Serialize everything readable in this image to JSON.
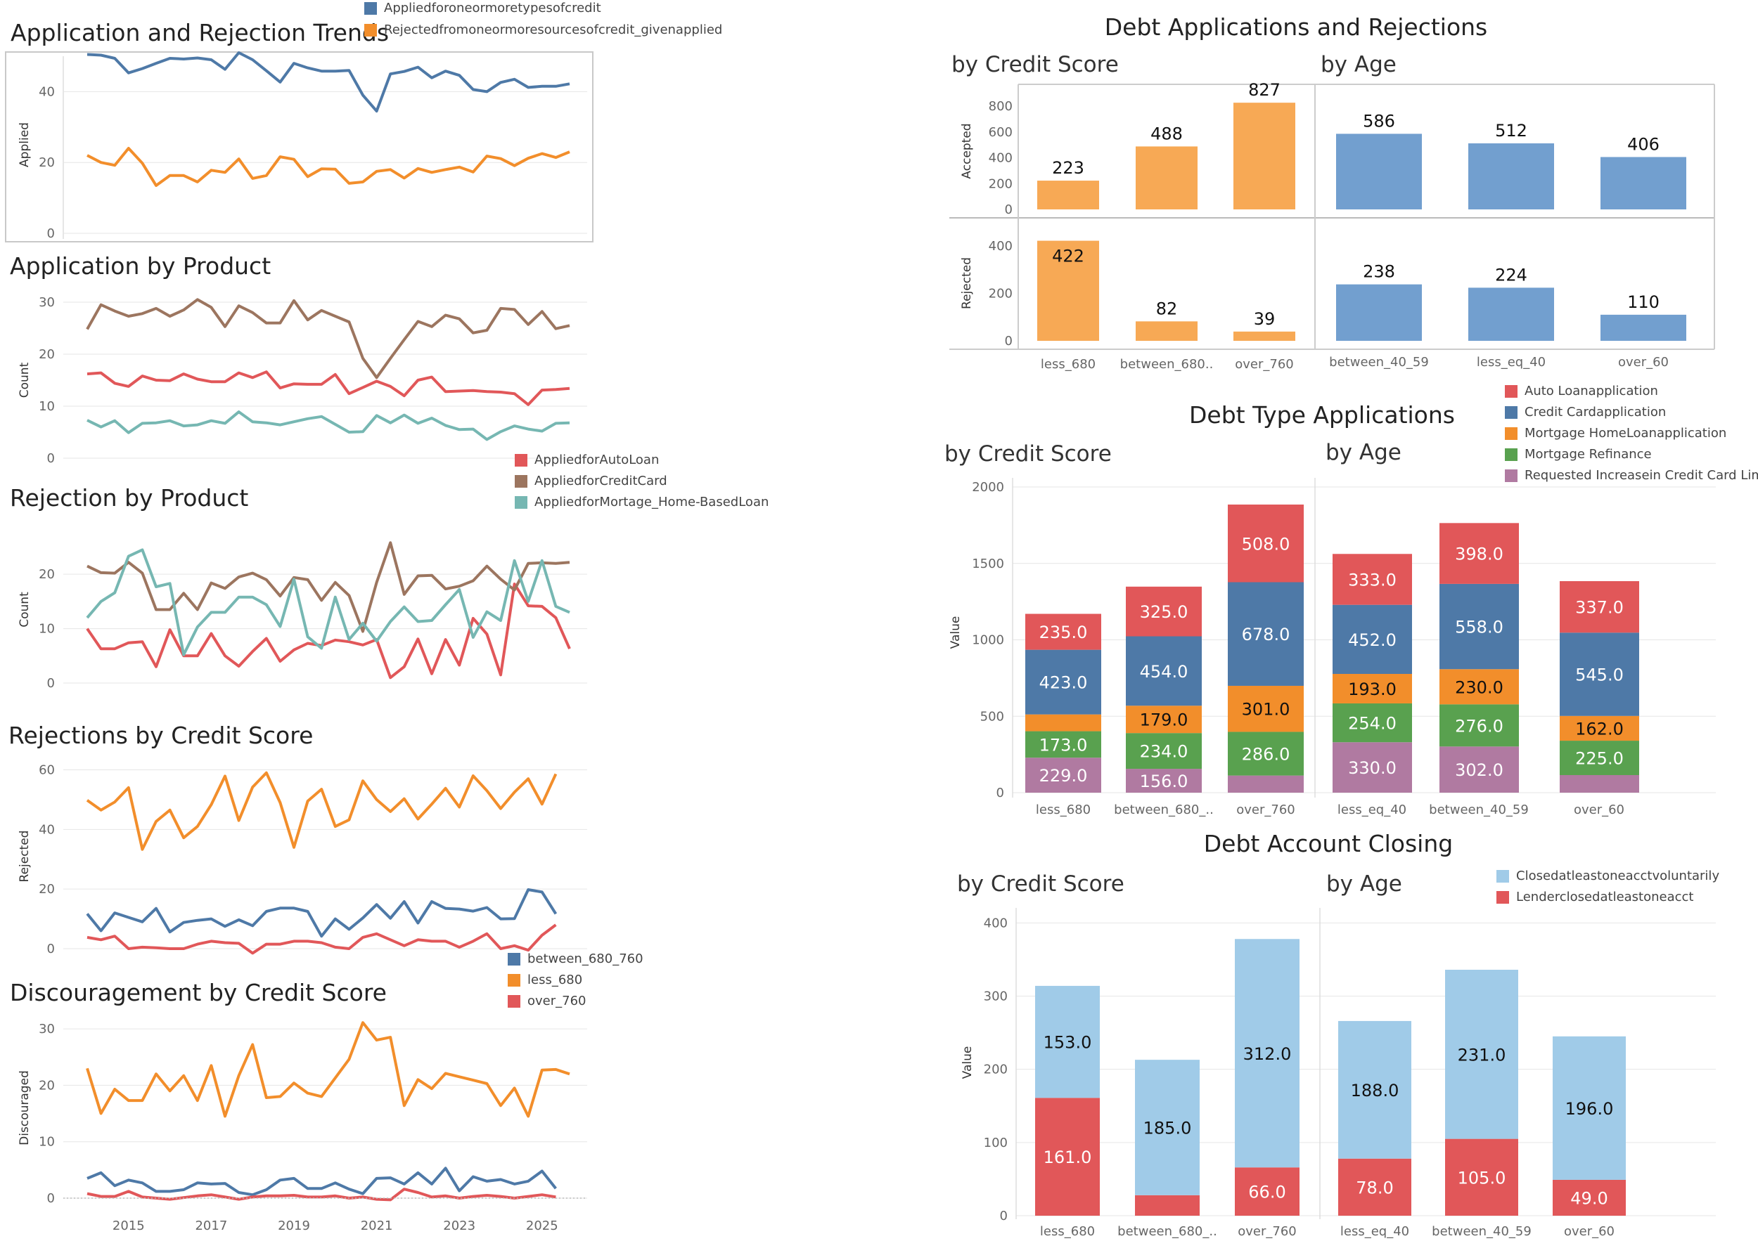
{
  "colors": {
    "blue": "#4e79a7",
    "orange": "#f28e2b",
    "red": "#e15759",
    "teal": "#76b7b2",
    "brown": "#9c755f",
    "green": "#59a14f",
    "purple": "#b07aa1",
    "light_orange": "#f7a955",
    "light_blue_bar": "#729fcf",
    "sky": "#a0cbe8"
  },
  "chart_data": [
    {
      "id": "app_rej_trends",
      "type": "line",
      "title": "Application and Rejection Trends",
      "ylabel": "Applied",
      "ylim": [
        0,
        50
      ],
      "yticks": [
        0,
        20,
        40
      ],
      "legend": [
        "Appliedforoneormoretypesofcredit",
        "Rejectedfromoneormoresourcesofcredit_givenapplied"
      ],
      "series": [
        {
          "name": "Appliedforoneormoretypesofcredit",
          "color": "#4e79a7",
          "values": [
            50.5,
            50.3,
            49.4,
            45.3,
            46.5,
            48.0,
            49.4,
            49.2,
            49.5,
            49.0,
            46.3,
            51.0,
            49.0,
            45.9,
            42.7,
            48.0,
            46.7,
            45.8,
            45.8,
            46.0,
            39.0,
            34.5,
            45.0,
            45.7,
            46.9,
            43.9,
            45.8,
            44.6,
            40.6,
            40.0,
            42.6,
            43.5,
            41.2,
            41.5,
            41.5,
            42.2
          ]
        },
        {
          "name": "Rejectedfromoneormoresourcesofcredit_givenapplied",
          "color": "#f28e2b",
          "values": [
            22.0,
            20.0,
            19.2,
            24.0,
            19.8,
            13.5,
            16.3,
            16.3,
            14.5,
            17.8,
            17.2,
            21.0,
            15.5,
            16.3,
            21.6,
            20.9,
            16.0,
            18.2,
            18.1,
            14.1,
            14.5,
            17.5,
            18.0,
            15.6,
            18.3,
            17.2,
            18.0,
            18.7,
            17.3,
            21.8,
            21.1,
            19.1,
            21.2,
            22.5,
            21.4,
            23.0
          ]
        }
      ]
    },
    {
      "id": "app_by_product",
      "type": "line",
      "title": "Application by Product",
      "ylabel": "Count",
      "ylim": [
        0,
        30
      ],
      "yticks": [
        0,
        10,
        20,
        30
      ],
      "legend": [
        "AppliedforAutoLoan",
        "AppliedforCreditCard",
        "AppliedforMortage_Home-BasedLoan"
      ],
      "series": [
        {
          "name": "AppliedforAutoLoan",
          "color": "#e15759",
          "values": [
            16.2,
            16.4,
            14.4,
            13.8,
            15.8,
            15.0,
            14.9,
            16.2,
            15.2,
            14.7,
            14.7,
            16.4,
            15.5,
            16.6,
            13.5,
            14.3,
            14.2,
            14.2,
            16.1,
            12.4,
            13.6,
            14.8,
            13.8,
            12.0,
            15.0,
            15.6,
            12.8,
            12.9,
            13.0,
            12.8,
            12.7,
            12.4,
            10.3,
            13.1,
            13.2,
            13.4
          ]
        },
        {
          "name": "AppliedforCreditCard",
          "color": "#9c755f",
          "values": [
            24.8,
            29.5,
            28.3,
            27.3,
            27.8,
            28.8,
            27.3,
            28.5,
            30.5,
            29.0,
            25.3,
            29.3,
            28.0,
            26.0,
            26.0,
            30.3,
            26.6,
            28.4,
            27.3,
            26.2,
            19.2,
            15.5,
            19.2,
            22.8,
            26.3,
            25.3,
            27.5,
            26.8,
            24.1,
            24.6,
            28.8,
            28.6,
            25.7,
            28.2,
            24.9,
            25.5
          ]
        },
        {
          "name": "AppliedforMortage_Home-BasedLoan",
          "color": "#76b7b2",
          "values": [
            7.3,
            6.0,
            7.2,
            4.9,
            6.7,
            6.8,
            7.2,
            6.2,
            6.4,
            7.2,
            6.7,
            8.9,
            7.0,
            6.8,
            6.4,
            7.0,
            7.6,
            8.0,
            6.5,
            5.0,
            5.1,
            8.2,
            6.8,
            8.3,
            6.7,
            7.7,
            6.3,
            5.5,
            5.6,
            3.6,
            5.1,
            6.2,
            5.6,
            5.2,
            6.7,
            6.8
          ]
        }
      ]
    },
    {
      "id": "rej_by_product",
      "type": "line",
      "title": "Rejection by Product",
      "ylabel": "Count",
      "ylim": [
        0,
        27
      ],
      "yticks": [
        0,
        10,
        20
      ],
      "series": [
        {
          "name": "AppliedforAutoLoan",
          "color": "#e15759",
          "values": [
            10.0,
            6.3,
            6.3,
            7.4,
            7.6,
            3.0,
            9.8,
            5.0,
            5.0,
            9.1,
            5.0,
            3.1,
            5.8,
            8.2,
            4.0,
            6.1,
            7.3,
            6.9,
            7.9,
            7.6,
            7.0,
            8.0,
            1.0,
            3.0,
            8.1,
            1.7,
            8.0,
            3.3,
            11.9,
            9.0,
            1.5,
            18.2,
            14.2,
            14.1,
            12.0,
            6.3
          ]
        },
        {
          "name": "AppliedforCreditCard",
          "color": "#9c755f",
          "values": [
            21.5,
            20.3,
            20.2,
            22.2,
            20.2,
            13.5,
            13.5,
            16.5,
            13.5,
            18.4,
            17.4,
            19.5,
            20.2,
            19.0,
            16.0,
            19.4,
            19.0,
            15.2,
            18.5,
            16.1,
            9.5,
            18.5,
            25.8,
            16.3,
            19.7,
            19.8,
            17.3,
            17.8,
            18.8,
            21.5,
            19.1,
            17.1,
            22.0,
            22.1,
            22.0,
            22.2
          ]
        },
        {
          "name": "AppliedforMortage_Home-BasedLoan",
          "color": "#76b7b2",
          "values": [
            12.0,
            15.0,
            16.6,
            23.3,
            24.5,
            17.7,
            18.3,
            5.2,
            10.3,
            13.0,
            13.0,
            15.8,
            15.8,
            14.4,
            10.4,
            19.1,
            8.5,
            6.4,
            15.8,
            8.0,
            11.0,
            7.7,
            11.3,
            14.0,
            11.3,
            11.5,
            14.4,
            17.2,
            8.4,
            13.1,
            11.5,
            22.5,
            15.0,
            22.5,
            14.1,
            13.0
          ]
        }
      ]
    },
    {
      "id": "rej_by_credit",
      "type": "line",
      "title": "Rejections by Credit Score",
      "ylabel": "Rejected",
      "ylim": [
        0,
        62
      ],
      "yticks": [
        0,
        20,
        40,
        60
      ],
      "legend": [
        "between_680_760",
        "less_680",
        "over_760"
      ],
      "series": [
        {
          "name": "between_680_760",
          "color": "#4e79a7",
          "values": [
            11.7,
            6.0,
            12.0,
            10.5,
            9.0,
            13.5,
            5.6,
            8.8,
            9.5,
            10.0,
            7.5,
            9.7,
            7.7,
            12.5,
            13.6,
            13.6,
            12.5,
            4.2,
            10.0,
            6.5,
            10.3,
            14.8,
            10.2,
            15.8,
            8.6,
            15.8,
            13.5,
            13.3,
            12.6,
            13.8,
            10.0,
            10.1,
            19.8,
            19.0,
            11.7,
            null
          ]
        },
        {
          "name": "less_680",
          "color": "#f28e2b",
          "values": [
            49.8,
            46.5,
            49.2,
            54.0,
            33.3,
            42.7,
            46.5,
            37.2,
            41.0,
            48.3,
            57.9,
            43.0,
            54.2,
            59.0,
            49.0,
            34.0,
            49.5,
            53.5,
            41.0,
            43.2,
            56.3,
            50.0,
            46.0,
            50.3,
            43.5,
            48.5,
            53.8,
            47.5,
            58.0,
            53.0,
            47.0,
            52.5,
            57.0,
            48.5,
            58.6,
            null
          ]
        },
        {
          "name": "over_760",
          "color": "#e15759",
          "values": [
            3.8,
            3.0,
            4.2,
            0.0,
            0.5,
            0.3,
            0.0,
            0.0,
            1.5,
            2.5,
            2.0,
            1.8,
            -1.5,
            1.5,
            1.5,
            2.5,
            2.5,
            2.0,
            0.5,
            0.0,
            3.8,
            5.0,
            3.0,
            1.0,
            3.0,
            2.5,
            2.5,
            0.5,
            2.5,
            5.0,
            0.0,
            1.0,
            -0.5,
            4.5,
            8.0,
            null
          ]
        }
      ]
    },
    {
      "id": "disc_by_credit",
      "type": "line",
      "title": "Discouragement by Credit Score",
      "ylabel": "Discouraged",
      "ylim": [
        0,
        32
      ],
      "yticks": [
        0,
        10,
        20,
        30
      ],
      "xticks": [
        "2015",
        "2017",
        "2019",
        "2021",
        "2023",
        "2025"
      ],
      "series": [
        {
          "name": "between_680_760",
          "color": "#4e79a7",
          "values": [
            3.5,
            4.5,
            2.2,
            3.2,
            2.7,
            1.2,
            1.2,
            1.5,
            2.7,
            2.5,
            2.6,
            1.0,
            0.6,
            1.5,
            3.2,
            3.5,
            1.7,
            1.7,
            2.7,
            1.6,
            0.8,
            3.5,
            3.6,
            2.5,
            4.5,
            2.5,
            5.3,
            1.3,
            3.8,
            3.0,
            3.3,
            2.5,
            3.0,
            4.8,
            1.7,
            null
          ]
        },
        {
          "name": "less_680",
          "color": "#f28e2b",
          "values": [
            23.0,
            15.0,
            19.3,
            17.3,
            17.3,
            22.0,
            19.0,
            21.7,
            17.3,
            23.5,
            14.5,
            21.7,
            27.2,
            17.8,
            18.0,
            20.4,
            18.6,
            18.0,
            21.3,
            24.6,
            31.1,
            28.0,
            28.5,
            16.4,
            21.0,
            19.4,
            22.1,
            21.5,
            20.9,
            20.3,
            16.4,
            19.5,
            14.5,
            22.7,
            22.8,
            22.0
          ]
        },
        {
          "name": "over_760",
          "color": "#e15759",
          "values": [
            0.8,
            0.3,
            0.3,
            1.2,
            0.2,
            0.0,
            -0.2,
            0.1,
            0.4,
            0.6,
            0.2,
            -0.2,
            0.2,
            0.4,
            0.4,
            0.5,
            0.2,
            0.2,
            0.4,
            0.0,
            0.2,
            -0.2,
            -0.3,
            1.6,
            1.0,
            0.2,
            0.4,
            0.0,
            0.3,
            0.5,
            0.3,
            0.0,
            0.3,
            0.6,
            0.2,
            null
          ]
        }
      ]
    },
    {
      "id": "debt_app_rej",
      "type": "bar",
      "title": "Debt Applications and Rejections",
      "panels": {
        "credit_title": "by Credit Score",
        "age_title": "by Age"
      },
      "row_labels": [
        "Accepted",
        "Rejected"
      ],
      "credit_categories": [
        "less_680",
        "between_680..",
        "over_760"
      ],
      "age_categories": [
        "between_40_59",
        "less_eq_40",
        "over_60"
      ],
      "credit_accepted": [
        223,
        488,
        827
      ],
      "credit_rejected": [
        422,
        82,
        39
      ],
      "age_accepted": [
        586,
        512,
        406
      ],
      "age_rejected": [
        238,
        224,
        110
      ],
      "accepted_yticks": [
        0,
        200,
        400,
        600,
        800
      ],
      "rejected_yticks": [
        0,
        200,
        400
      ]
    },
    {
      "id": "debt_type_apps",
      "type": "bar",
      "stacked": true,
      "title": "Debt Type Applications",
      "ylabel": "Value",
      "ylim": [
        0,
        2000
      ],
      "yticks": [
        0,
        500,
        1000,
        1500,
        2000
      ],
      "credit_title": "by Credit Score",
      "age_title": "by Age",
      "credit_categories": [
        "less_680",
        "between_680_..",
        "over_760"
      ],
      "age_categories": [
        "less_eq_40",
        "between_40_59",
        "over_60"
      ],
      "legend": [
        "Auto Loanapplication",
        "Credit Cardapplication",
        "Mortgage HomeLoanapplication",
        "Mortgage Refinance",
        "Requested Increasein Credit Card Limit"
      ],
      "series_order_bottom_up": [
        "Requested Increasein Credit Card Limit",
        "Mortgage Refinance",
        "Mortgage HomeLoanapplication",
        "Credit Cardapplication",
        "Auto Loanapplication"
      ],
      "credit_stacks": [
        [
          229.0,
          173.0,
          110.0,
          423.0,
          235.0
        ],
        [
          156.0,
          234.0,
          179.0,
          454.0,
          325.0
        ],
        [
          112.0,
          286.0,
          301.0,
          678.0,
          508.0
        ]
      ],
      "credit_shown": [
        [
          "229.0",
          "173.0",
          "",
          "423.0",
          "235.0"
        ],
        [
          "156.0",
          "234.0",
          "179.0",
          "454.0",
          "325.0"
        ],
        [
          "",
          "286.0",
          "301.0",
          "678.0",
          "508.0"
        ]
      ],
      "age_stacks": [
        [
          330.0,
          254.0,
          193.0,
          452.0,
          333.0
        ],
        [
          302.0,
          276.0,
          230.0,
          558.0,
          398.0
        ],
        [
          115.0,
          225.0,
          162.0,
          545.0,
          337.0
        ]
      ],
      "age_shown": [
        [
          "330.0",
          "254.0",
          "193.0",
          "452.0",
          "333.0"
        ],
        [
          "302.0",
          "276.0",
          "230.0",
          "558.0",
          "398.0"
        ],
        [
          "",
          "225.0",
          "162.0",
          "545.0",
          "337.0"
        ]
      ]
    },
    {
      "id": "debt_closing",
      "type": "bar",
      "stacked": true,
      "title": "Debt Account Closing",
      "ylabel": "Value",
      "ylim": [
        0,
        400
      ],
      "yticks": [
        0,
        100,
        200,
        300,
        400
      ],
      "credit_title": "by Credit Score",
      "age_title": "by Age",
      "credit_categories": [
        "less_680",
        "between_680_..",
        "over_760"
      ],
      "age_categories": [
        "less_eq_40",
        "between_40_59",
        "over_60"
      ],
      "legend": [
        "Closedatleastoneacctvoluntarily",
        "Lenderclosedatleastoneacct"
      ],
      "credit_stacks": [
        [
          161.0,
          153.0
        ],
        [
          28.0,
          185.0
        ],
        [
          66.0,
          312.0
        ]
      ],
      "credit_shown": [
        [
          "161.0",
          "153.0"
        ],
        [
          "",
          "185.0"
        ],
        [
          "66.0",
          "312.0"
        ]
      ],
      "age_stacks": [
        [
          78.0,
          188.0
        ],
        [
          105.0,
          231.0
        ],
        [
          49.0,
          196.0
        ]
      ],
      "age_shown": [
        [
          "78.0",
          "188.0"
        ],
        [
          "105.0",
          "231.0"
        ],
        [
          "49.0",
          "196.0"
        ]
      ]
    }
  ]
}
